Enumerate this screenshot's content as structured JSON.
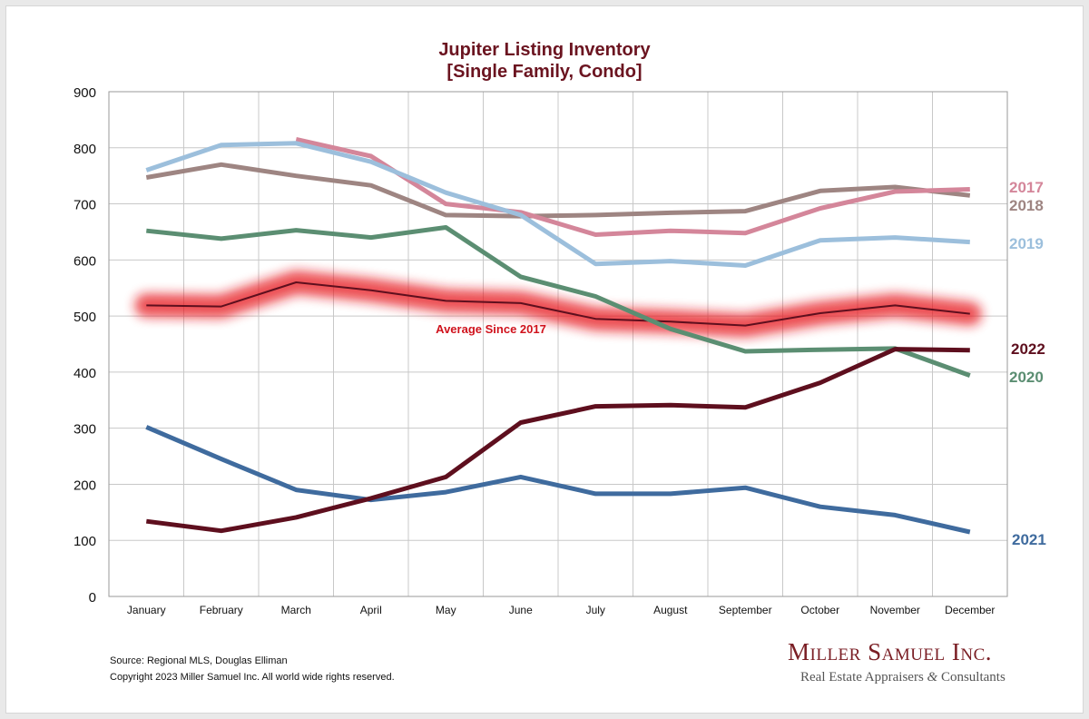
{
  "chart_data": {
    "type": "line",
    "title": "Jupiter Listing Inventory",
    "subtitle": "[Single Family, Condo]",
    "categories": [
      "January",
      "February",
      "March",
      "April",
      "May",
      "June",
      "July",
      "August",
      "September",
      "October",
      "November",
      "December"
    ],
    "ylim": [
      0,
      900
    ],
    "yticks": [
      0,
      100,
      200,
      300,
      400,
      500,
      600,
      700,
      800,
      900
    ],
    "grid": true,
    "series": [
      {
        "name": "2017",
        "color": "#d4869a",
        "values": [
          null,
          null,
          815,
          785,
          700,
          685,
          645,
          652,
          648,
          692,
          722,
          726
        ]
      },
      {
        "name": "2018",
        "color": "#9e8582",
        "values": [
          747,
          770,
          750,
          733,
          680,
          678,
          680,
          684,
          687,
          723,
          730,
          715
        ]
      },
      {
        "name": "2019",
        "color": "#9cbfdc",
        "values": [
          760,
          805,
          808,
          775,
          720,
          680,
          593,
          598,
          590,
          635,
          640,
          632
        ]
      },
      {
        "name": "2020",
        "color": "#5b8e72",
        "values": [
          652,
          638,
          653,
          640,
          658,
          570,
          535,
          477,
          437,
          440,
          442,
          394
        ]
      },
      {
        "name": "2021",
        "color": "#3f6b9e",
        "values": [
          302,
          245,
          190,
          172,
          186,
          213,
          183,
          183,
          194,
          160,
          145,
          115
        ]
      },
      {
        "name": "2022",
        "color": "#5e0f1e",
        "values": [
          134,
          117,
          141,
          175,
          213,
          310,
          339,
          341,
          337,
          381,
          441,
          439
        ]
      },
      {
        "name": "Average  Since 2017",
        "color": "#e6121c",
        "values": [
          519,
          517,
          560,
          546,
          527,
          523,
          495,
          490,
          483,
          505,
          519,
          504
        ]
      }
    ],
    "annotations": {
      "average_label": "Average  Since 2017"
    }
  },
  "footer": {
    "source": "Source: Regional MLS, Douglas Elliman",
    "copyright": "Copyright 2023 Miller Samuel Inc.  All world wide rights reserved."
  },
  "brand": {
    "name": "Miller Samuel Inc.",
    "tagline_before": "Real Estate Appraisers ",
    "tagline_amp": "&",
    "tagline_after": " Consultants"
  }
}
